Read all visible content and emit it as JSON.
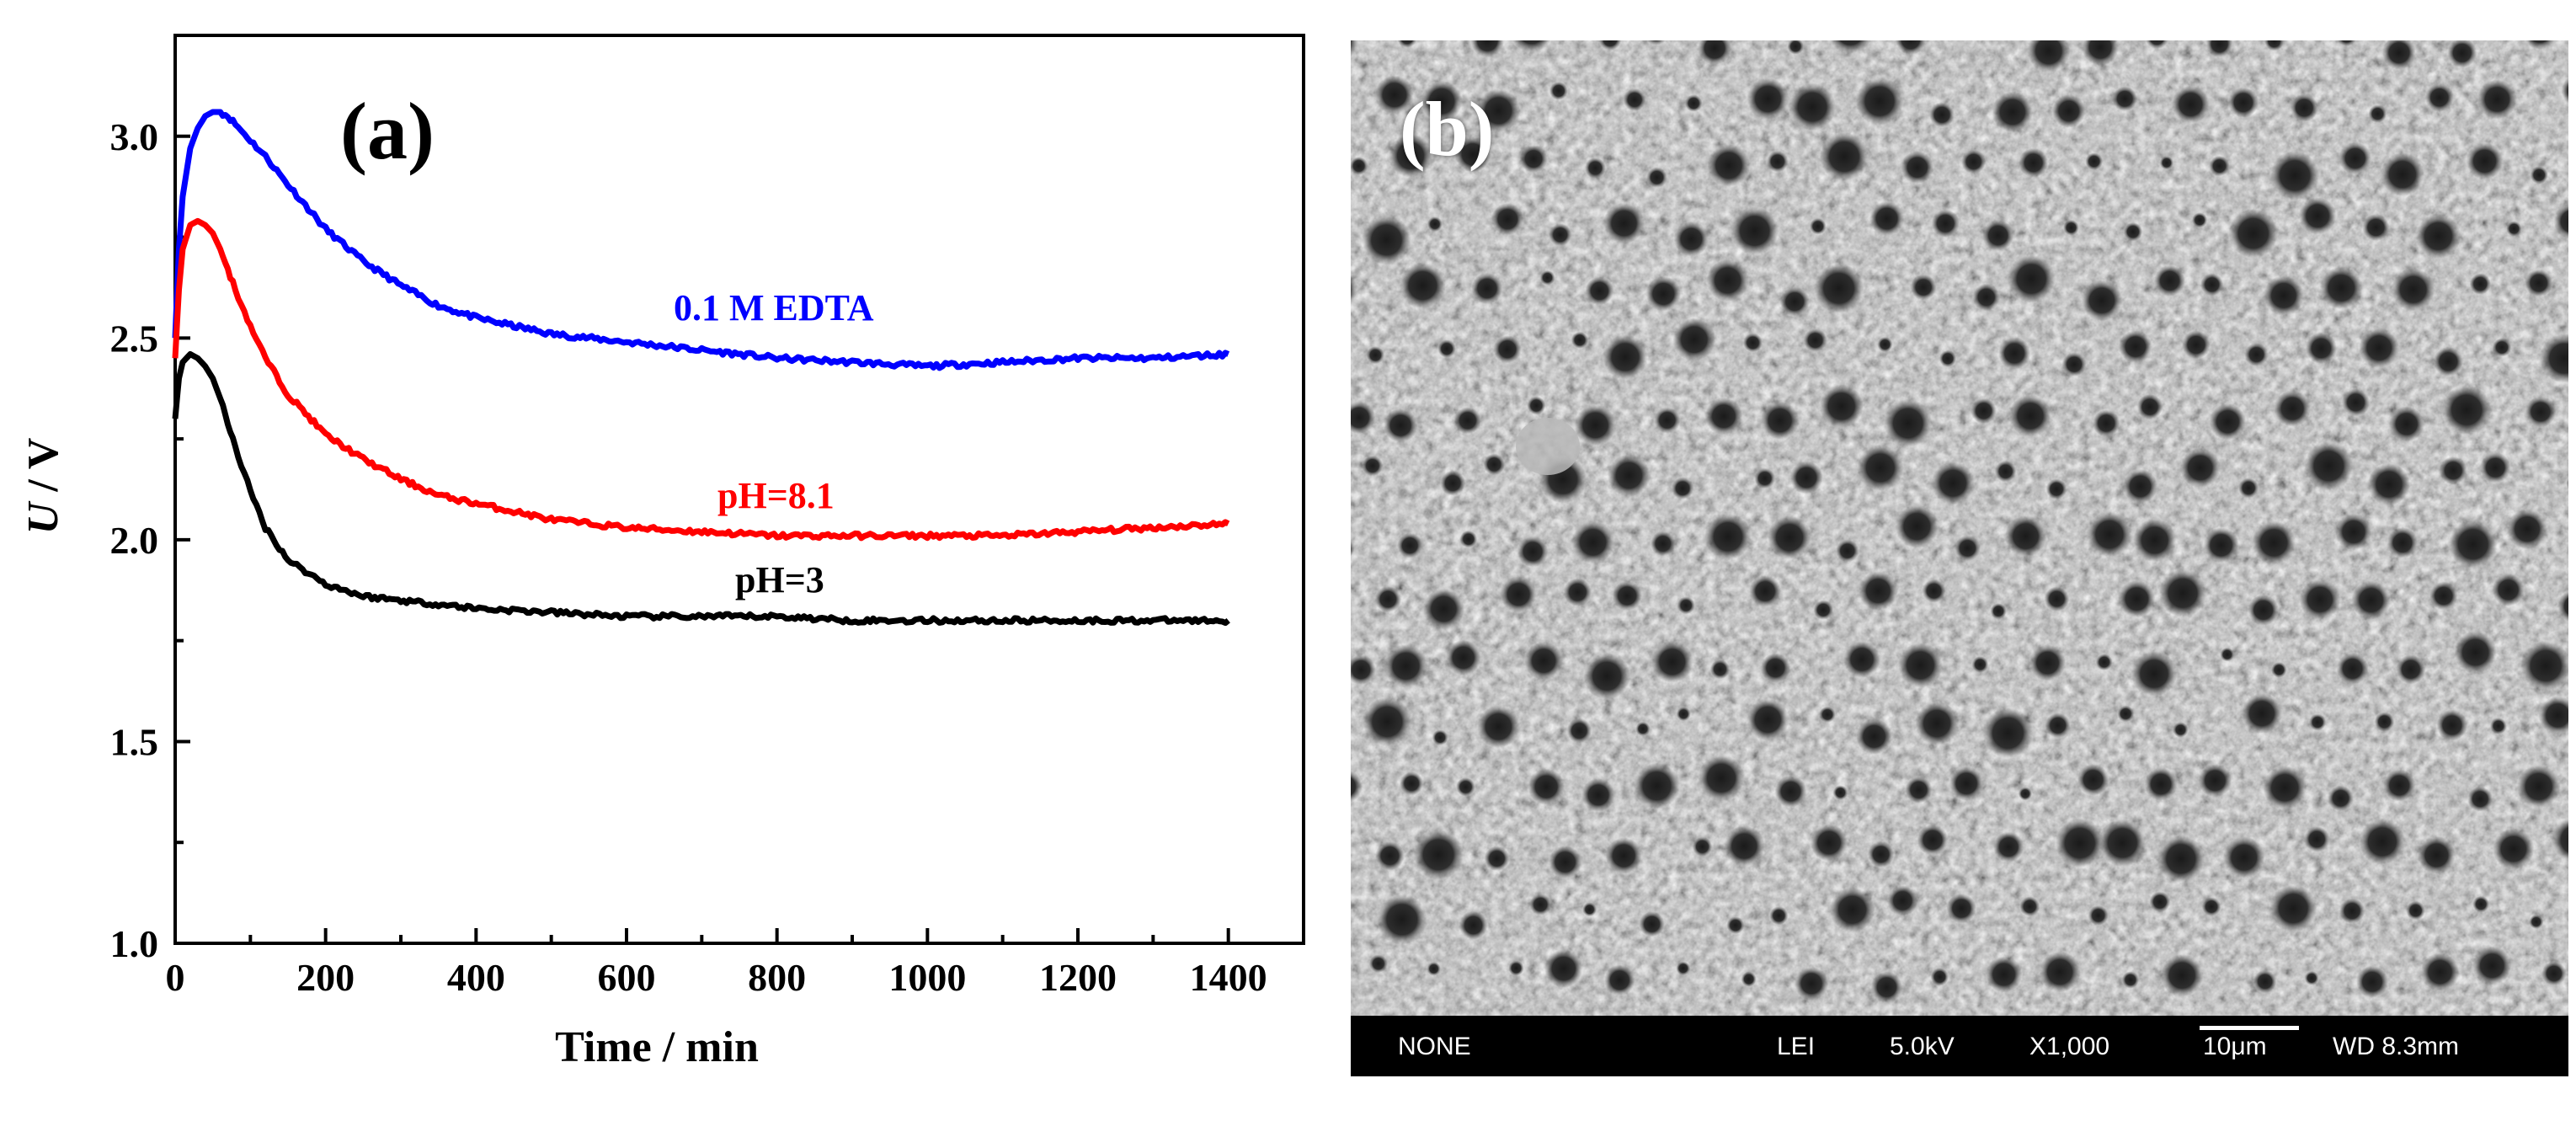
{
  "panel_a": {
    "label": "(a)",
    "annotations": {
      "edta": "0.1 M EDTA",
      "ph81": "pH=8.1",
      "ph3": "pH=3"
    }
  },
  "panel_b": {
    "label": "(b)",
    "info_bar": {
      "mode": "NONE",
      "detector": "LEI",
      "voltage": "5.0kV",
      "magnification": "X1,000",
      "scale": "10μm",
      "wd": "WD 8.3mm"
    }
  },
  "colors": {
    "blue": "#0000ff",
    "red": "#ff0000",
    "black": "#000000"
  },
  "chart_data": {
    "type": "line",
    "title": "",
    "xlabel": "Time / min",
    "ylabel_italic": "U",
    "ylabel_rest": " / V",
    "xlim": [
      0,
      1500
    ],
    "ylim": [
      1.0,
      3.25
    ],
    "xticks": [
      0,
      200,
      400,
      600,
      800,
      1000,
      1200,
      1400
    ],
    "xtick_labels": [
      "0",
      "200",
      "400",
      "600",
      "800",
      "1000",
      "1200",
      "1400"
    ],
    "yticks": [
      1.0,
      1.5,
      2.0,
      2.5,
      3.0
    ],
    "ytick_labels": [
      "1.0",
      "1.5",
      "2.0",
      "2.5",
      "3.0"
    ],
    "series": [
      {
        "name": "0.1 M EDTA",
        "color": "#0000ff",
        "x": [
          0,
          5,
          10,
          20,
          30,
          40,
          50,
          60,
          70,
          80,
          100,
          120,
          150,
          200,
          250,
          300,
          350,
          400,
          450,
          500,
          550,
          600,
          700,
          800,
          900,
          1000,
          1100,
          1200,
          1300,
          1400
        ],
        "y": [
          2.5,
          2.72,
          2.85,
          2.97,
          3.02,
          3.05,
          3.06,
          3.06,
          3.05,
          3.03,
          2.99,
          2.95,
          2.88,
          2.77,
          2.69,
          2.63,
          2.58,
          2.55,
          2.53,
          2.51,
          2.5,
          2.49,
          2.47,
          2.45,
          2.44,
          2.43,
          2.44,
          2.45,
          2.45,
          2.46
        ]
      },
      {
        "name": "pH=8.1",
        "color": "#ff0000",
        "x": [
          0,
          5,
          10,
          20,
          30,
          40,
          50,
          60,
          70,
          80,
          100,
          120,
          150,
          200,
          250,
          300,
          350,
          400,
          450,
          500,
          600,
          700,
          800,
          900,
          1000,
          1100,
          1200,
          1300,
          1400
        ],
        "y": [
          2.45,
          2.62,
          2.72,
          2.78,
          2.79,
          2.78,
          2.76,
          2.72,
          2.67,
          2.62,
          2.53,
          2.45,
          2.36,
          2.26,
          2.2,
          2.15,
          2.11,
          2.09,
          2.07,
          2.05,
          2.03,
          2.02,
          2.01,
          2.01,
          2.01,
          2.01,
          2.02,
          2.03,
          2.04
        ]
      },
      {
        "name": "pH=3",
        "color": "#000000",
        "x": [
          0,
          5,
          10,
          20,
          30,
          40,
          50,
          60,
          70,
          80,
          100,
          120,
          150,
          200,
          250,
          300,
          350,
          400,
          500,
          600,
          700,
          800,
          900,
          1000,
          1100,
          1200,
          1300,
          1400
        ],
        "y": [
          2.3,
          2.4,
          2.44,
          2.46,
          2.45,
          2.43,
          2.4,
          2.35,
          2.29,
          2.23,
          2.12,
          2.03,
          1.95,
          1.89,
          1.86,
          1.85,
          1.84,
          1.83,
          1.82,
          1.81,
          1.81,
          1.81,
          1.8,
          1.8,
          1.8,
          1.8,
          1.8,
          1.8
        ]
      }
    ]
  }
}
